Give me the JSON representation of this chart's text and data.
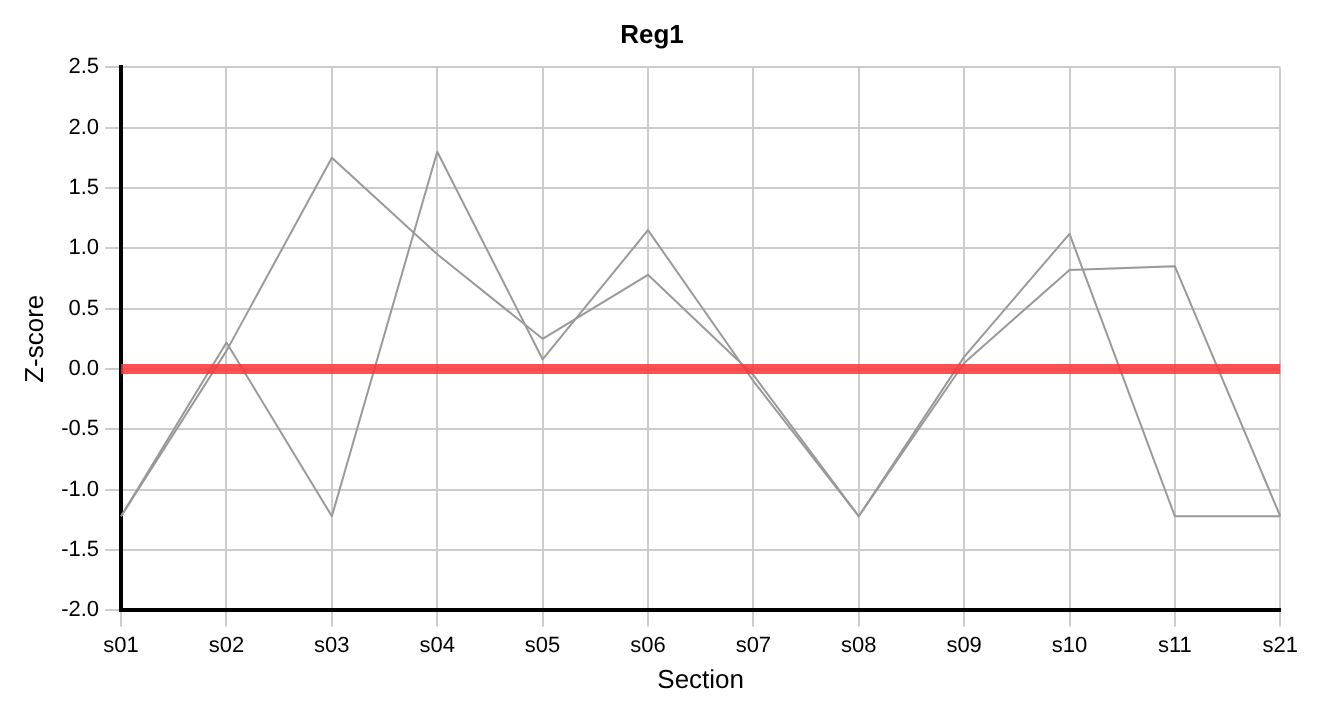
{
  "chart_data": {
    "type": "line",
    "title": "Reg1",
    "xlabel": "Section",
    "ylabel": "Z-score",
    "categories": [
      "s01",
      "s02",
      "s03",
      "s04",
      "s05",
      "s06",
      "s07",
      "s08",
      "s09",
      "s10",
      "s11",
      "s21"
    ],
    "series": [
      {
        "color": "#999999",
        "values": [
          -1.22,
          0.22,
          -1.22,
          1.8,
          0.08,
          1.15,
          -0.1,
          -1.22,
          0.1,
          1.12,
          -1.22,
          -1.22
        ]
      },
      {
        "color": "#999999",
        "values": [
          -1.22,
          0.15,
          1.75,
          0.95,
          0.25,
          0.78,
          -0.05,
          -1.22,
          0.05,
          0.82,
          0.85,
          -1.22
        ]
      }
    ],
    "ylim": [
      -2,
      2.5
    ],
    "yticks": [
      {
        "value": -2,
        "label": "-2.0"
      },
      {
        "value": -1.5,
        "label": "-1.5"
      },
      {
        "value": -1,
        "label": "-1.0"
      },
      {
        "value": -0.5,
        "label": "-0.5"
      },
      {
        "value": 0,
        "label": "0.0"
      },
      {
        "value": 0.5,
        "label": "0.5"
      },
      {
        "value": 1,
        "label": "1.0"
      },
      {
        "value": 1.5,
        "label": "1.5"
      },
      {
        "value": 2,
        "label": "2.0"
      },
      {
        "value": 2.5,
        "label": "2.5"
      }
    ],
    "ref_lines": [
      {
        "axis": "y",
        "value": 0,
        "color": "#ff3333"
      }
    ],
    "grid": true,
    "legend": false,
    "marker": "none",
    "line_style": "solid"
  }
}
